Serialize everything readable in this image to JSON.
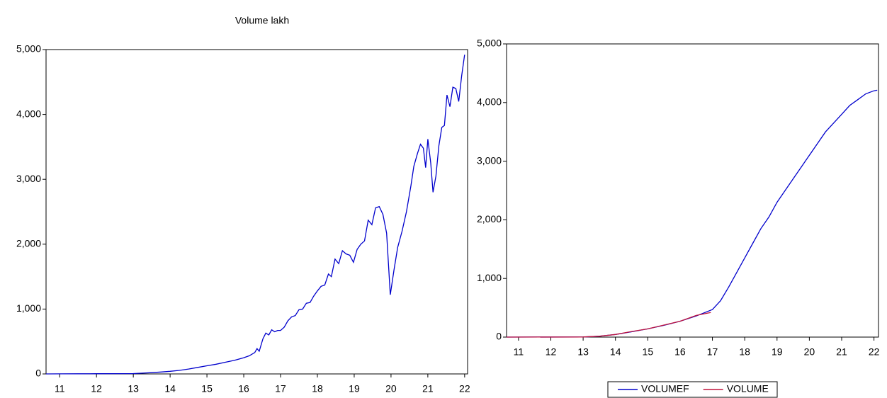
{
  "chart_data": [
    {
      "type": "line",
      "title": "Volume lakh",
      "xlim": [
        2010.63,
        2022.08
      ],
      "xticks": [
        {
          "value": 2011,
          "label": "11"
        },
        {
          "value": 2012,
          "label": "12"
        },
        {
          "value": 2013,
          "label": "13"
        },
        {
          "value": 2014,
          "label": "14"
        },
        {
          "value": 2015,
          "label": "15"
        },
        {
          "value": 2016,
          "label": "16"
        },
        {
          "value": 2017,
          "label": "17"
        },
        {
          "value": 2018,
          "label": "18"
        },
        {
          "value": 2019,
          "label": "19"
        },
        {
          "value": 2020,
          "label": "20"
        },
        {
          "value": 2021,
          "label": "21"
        },
        {
          "value": 2022,
          "label": "22"
        }
      ],
      "ylim": [
        0,
        5000
      ],
      "yticks": [
        0,
        {
          "value": 1000,
          "label": "1,000"
        },
        {
          "value": 2000,
          "label": "2,000"
        },
        {
          "value": 3000,
          "label": "3,000"
        },
        {
          "value": 4000,
          "label": "4,000"
        },
        {
          "value": 5000,
          "label": "5,000"
        }
      ],
      "series": [
        {
          "color": "#0000cc",
          "x": [
            2010.63,
            2011,
            2011.5,
            2012,
            2012.5,
            2013,
            2013.25,
            2013.5,
            2013.75,
            2014,
            2014.25,
            2014.5,
            2014.75,
            2015,
            2015.25,
            2015.5,
            2015.75,
            2016,
            2016.15,
            2016.3,
            2016.36,
            2016.42,
            2016.52,
            2016.6,
            2016.68,
            2016.76,
            2016.84,
            2016.92,
            2017,
            2017.1,
            2017.2,
            2017.3,
            2017.4,
            2017.5,
            2017.6,
            2017.7,
            2017.8,
            2017.9,
            2018,
            2018.1,
            2018.2,
            2018.3,
            2018.38,
            2018.48,
            2018.58,
            2018.68,
            2018.78,
            2018.88,
            2018.98,
            2019.08,
            2019.18,
            2019.28,
            2019.38,
            2019.48,
            2019.58,
            2019.68,
            2019.78,
            2019.88,
            2019.98,
            2020.08,
            2020.18,
            2020.3,
            2020.42,
            2020.54,
            2020.62,
            2020.72,
            2020.8,
            2020.88,
            2020.94,
            2021,
            2021.08,
            2021.14,
            2021.22,
            2021.3,
            2021.38,
            2021.45,
            2021.52,
            2021.6,
            2021.68,
            2021.76,
            2021.84,
            2021.92,
            2022
          ],
          "values": [
            0,
            1,
            2,
            3,
            4,
            6,
            12,
            20,
            30,
            40,
            55,
            75,
            100,
            125,
            150,
            180,
            210,
            250,
            280,
            330,
            390,
            350,
            540,
            630,
            600,
            680,
            650,
            670,
            670,
            720,
            820,
            880,
            900,
            990,
            1000,
            1090,
            1100,
            1200,
            1280,
            1350,
            1370,
            1540,
            1500,
            1770,
            1700,
            1900,
            1850,
            1830,
            1720,
            1920,
            2000,
            2050,
            2370,
            2300,
            2560,
            2580,
            2460,
            2170,
            1220,
            1600,
            1950,
            2200,
            2500,
            2900,
            3200,
            3400,
            3540,
            3480,
            3180,
            3620,
            3250,
            2800,
            3050,
            3520,
            3800,
            3830,
            4300,
            4120,
            4420,
            4400,
            4200,
            4600,
            4920
          ]
        }
      ]
    },
    {
      "type": "line",
      "legend": "bottom",
      "xlim": [
        2010.63,
        2022.14
      ],
      "xticks": [
        {
          "value": 2011,
          "label": "11"
        },
        {
          "value": 2012,
          "label": "12"
        },
        {
          "value": 2013,
          "label": "13"
        },
        {
          "value": 2014,
          "label": "14"
        },
        {
          "value": 2015,
          "label": "15"
        },
        {
          "value": 2016,
          "label": "16"
        },
        {
          "value": 2017,
          "label": "17"
        },
        {
          "value": 2018,
          "label": "18"
        },
        {
          "value": 2019,
          "label": "19"
        },
        {
          "value": 2020,
          "label": "20"
        },
        {
          "value": 2021,
          "label": "21"
        },
        {
          "value": 2022,
          "label": "22"
        }
      ],
      "ylim": [
        0,
        5000
      ],
      "yticks": [
        0,
        {
          "value": 1000,
          "label": "1,000"
        },
        {
          "value": 2000,
          "label": "2,000"
        },
        {
          "value": 3000,
          "label": "3,000"
        },
        {
          "value": 4000,
          "label": "4,000"
        },
        {
          "value": 5000,
          "label": "5,000"
        }
      ],
      "series": [
        {
          "name": "VOLUMEF",
          "color": "#0000cc",
          "x": [
            2010.63,
            2013,
            2013.5,
            2014,
            2014.5,
            2015,
            2015.5,
            2016,
            2016.5,
            2017,
            2017.25,
            2017.5,
            2017.75,
            2018,
            2018.25,
            2018.5,
            2018.75,
            2019,
            2019.25,
            2019.5,
            2019.75,
            2020,
            2020.25,
            2020.5,
            2020.75,
            2021,
            2021.25,
            2021.5,
            2021.75,
            2022,
            2022.1
          ],
          "values": [
            0,
            2,
            15,
            45,
            90,
            140,
            200,
            270,
            360,
            470,
            620,
            850,
            1100,
            1350,
            1600,
            1850,
            2050,
            2300,
            2500,
            2700,
            2900,
            3100,
            3300,
            3500,
            3650,
            3800,
            3950,
            4050,
            4150,
            4200,
            4210
          ]
        },
        {
          "name": "VOLUME",
          "color": "#c0143c",
          "x": [
            2010.63,
            2013,
            2013.5,
            2014,
            2014.5,
            2015,
            2015.5,
            2016,
            2016.5,
            2016.95
          ],
          "values": [
            0,
            2,
            15,
            45,
            95,
            140,
            205,
            270,
            370,
            420
          ]
        }
      ]
    }
  ]
}
